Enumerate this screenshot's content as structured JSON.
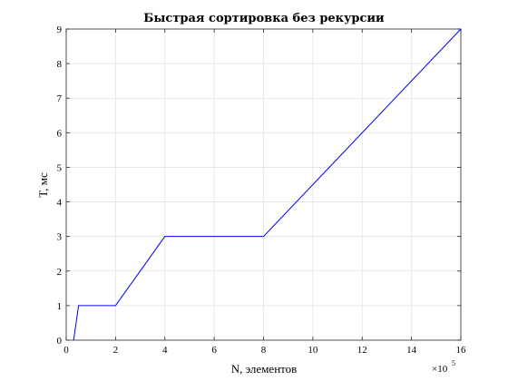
{
  "chart_data": {
    "type": "line",
    "title": "Быстрая сортировка без рекурсии",
    "xlabel": "N, элементов",
    "ylabel": "T, мс",
    "x_multiplier": {
      "base": "×10",
      "exponent": "5"
    },
    "xlim": [
      0,
      16
    ],
    "ylim": [
      0,
      9
    ],
    "xticks": [
      0,
      2,
      4,
      6,
      8,
      10,
      12,
      14,
      16
    ],
    "yticks": [
      0,
      1,
      2,
      3,
      4,
      5,
      6,
      7,
      8,
      9
    ],
    "grid": true,
    "series": [
      {
        "color": "#0000ff",
        "x": [
          0.3,
          0.5,
          2,
          4,
          8,
          16
        ],
        "y": [
          0,
          1,
          1,
          3,
          3,
          9
        ]
      }
    ]
  }
}
